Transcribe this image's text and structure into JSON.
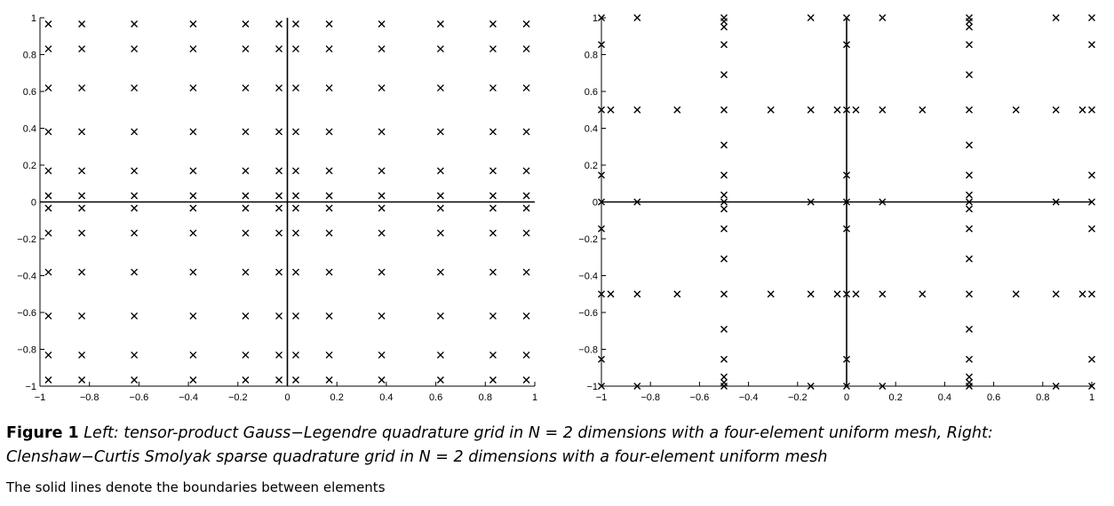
{
  "chart_data": [
    {
      "type": "scatter",
      "title": "",
      "xlabel": "",
      "ylabel": "",
      "xlim": [
        -1,
        1
      ],
      "ylim": [
        -1,
        1
      ],
      "xticks": [
        -1,
        -0.8,
        -0.6,
        -0.4,
        -0.2,
        0,
        0.2,
        0.4,
        0.6,
        0.8,
        1
      ],
      "yticks": [
        -1,
        -0.8,
        -0.6,
        -0.4,
        -0.2,
        0,
        0.2,
        0.4,
        0.6,
        0.8,
        1
      ],
      "xtick_labels": [
        "−1",
        "−0.8",
        "−0.6",
        "−0.4",
        "−0.2",
        "0",
        "0.2",
        "0.4",
        "0.6",
        "0.8",
        "1"
      ],
      "ytick_labels": [
        "−1",
        "−0.8",
        "−0.6",
        "−0.4",
        "−0.2",
        "0",
        "0.2",
        "0.4",
        "0.6",
        "0.8",
        "1"
      ],
      "marker": "x",
      "element_boundaries": {
        "x": [
          0
        ],
        "y": [
          0
        ]
      },
      "grid_coords": [
        -0.966,
        -0.831,
        -0.619,
        -0.381,
        -0.169,
        -0.034,
        0.034,
        0.169,
        0.381,
        0.619,
        0.831,
        0.966
      ]
    },
    {
      "type": "scatter",
      "title": "",
      "xlabel": "",
      "ylabel": "",
      "xlim": [
        -1,
        1
      ],
      "ylim": [
        -1,
        1
      ],
      "xticks": [
        -1,
        -0.8,
        -0.6,
        -0.4,
        -0.2,
        0,
        0.2,
        0.4,
        0.6,
        0.8,
        1
      ],
      "yticks": [
        -1,
        -0.8,
        -0.6,
        -0.4,
        -0.2,
        0,
        0.2,
        0.4,
        0.6,
        0.8,
        1
      ],
      "xtick_labels": [
        "−1",
        "−0.8",
        "−0.6",
        "−0.4",
        "−0.2",
        "0",
        "0.2",
        "0.4",
        "0.6",
        "0.8",
        "1"
      ],
      "ytick_labels": [
        "−1",
        "−0.8",
        "−0.6",
        "−0.4",
        "−0.2",
        "0",
        "0.2",
        "0.4",
        "0.6",
        "0.8",
        "1"
      ],
      "marker": "x",
      "element_boundaries": {
        "x": [
          0
        ],
        "y": [
          0
        ]
      },
      "points": [
        [
          -1,
          1
        ],
        [
          -0.854,
          1
        ],
        [
          -0.5,
          1
        ],
        [
          -0.146,
          1
        ],
        [
          0,
          1
        ],
        [
          0.146,
          1
        ],
        [
          0.5,
          1
        ],
        [
          0.854,
          1
        ],
        [
          1,
          1
        ],
        [
          -1,
          0.854
        ],
        [
          -0.5,
          0.854
        ],
        [
          0,
          0.854
        ],
        [
          0.5,
          0.854
        ],
        [
          1,
          0.854
        ],
        [
          -0.5,
          0.98
        ],
        [
          -0.5,
          0.95
        ],
        [
          0.5,
          0.98
        ],
        [
          0.5,
          0.95
        ],
        [
          -0.5,
          0.691
        ],
        [
          0.5,
          0.691
        ],
        [
          -1,
          0.5
        ],
        [
          -0.962,
          0.5
        ],
        [
          -0.854,
          0.5
        ],
        [
          -0.691,
          0.5
        ],
        [
          -0.5,
          0.5
        ],
        [
          -0.309,
          0.5
        ],
        [
          -0.146,
          0.5
        ],
        [
          -0.038,
          0.5
        ],
        [
          0,
          0.5
        ],
        [
          0.038,
          0.5
        ],
        [
          0.146,
          0.5
        ],
        [
          0.309,
          0.5
        ],
        [
          0.5,
          0.5
        ],
        [
          0.691,
          0.5
        ],
        [
          0.854,
          0.5
        ],
        [
          0.962,
          0.5
        ],
        [
          1,
          0.5
        ],
        [
          -0.5,
          0.309
        ],
        [
          0.5,
          0.309
        ],
        [
          -1,
          0.146
        ],
        [
          -0.5,
          0.146
        ],
        [
          0,
          0.146
        ],
        [
          0.5,
          0.146
        ],
        [
          1,
          0.146
        ],
        [
          -0.5,
          0.038
        ],
        [
          0.5,
          0.038
        ],
        [
          -1,
          0
        ],
        [
          -0.854,
          0
        ],
        [
          -0.5,
          0
        ],
        [
          -0.146,
          0
        ],
        [
          0,
          0
        ],
        [
          0.146,
          0
        ],
        [
          0.5,
          0
        ],
        [
          0.854,
          0
        ],
        [
          1,
          0
        ],
        [
          -0.5,
          -0.038
        ],
        [
          0.5,
          -0.038
        ],
        [
          -1,
          -0.146
        ],
        [
          -0.5,
          -0.146
        ],
        [
          0,
          -0.146
        ],
        [
          0.5,
          -0.146
        ],
        [
          1,
          -0.146
        ],
        [
          -0.5,
          -0.309
        ],
        [
          0.5,
          -0.309
        ],
        [
          -1,
          -0.5
        ],
        [
          -0.962,
          -0.5
        ],
        [
          -0.854,
          -0.5
        ],
        [
          -0.691,
          -0.5
        ],
        [
          -0.5,
          -0.5
        ],
        [
          -0.309,
          -0.5
        ],
        [
          -0.146,
          -0.5
        ],
        [
          -0.038,
          -0.5
        ],
        [
          0,
          -0.5
        ],
        [
          0.038,
          -0.5
        ],
        [
          0.146,
          -0.5
        ],
        [
          0.309,
          -0.5
        ],
        [
          0.5,
          -0.5
        ],
        [
          0.691,
          -0.5
        ],
        [
          0.854,
          -0.5
        ],
        [
          0.962,
          -0.5
        ],
        [
          1,
          -0.5
        ],
        [
          -0.5,
          -0.691
        ],
        [
          0.5,
          -0.691
        ],
        [
          -1,
          -0.854
        ],
        [
          -0.5,
          -0.854
        ],
        [
          0,
          -0.854
        ],
        [
          0.5,
          -0.854
        ],
        [
          1,
          -0.854
        ],
        [
          -0.5,
          -0.95
        ],
        [
          -0.5,
          -0.98
        ],
        [
          0.5,
          -0.95
        ],
        [
          0.5,
          -0.98
        ],
        [
          -1,
          -1
        ],
        [
          -0.854,
          -1
        ],
        [
          -0.5,
          -1
        ],
        [
          -0.146,
          -1
        ],
        [
          0,
          -1
        ],
        [
          0.146,
          -1
        ],
        [
          0.5,
          -1
        ],
        [
          0.854,
          -1
        ],
        [
          1,
          -1
        ]
      ]
    }
  ],
  "caption": {
    "label": "Figure 1",
    "text": "Left: tensor-product Gauss−Legendre quadrature grid in N = 2 dimensions with a four-element uniform mesh, Right: Clenshaw−Curtis Smolyak sparse quadrature grid in N = 2 dimensions with a four-element uniform mesh",
    "note": "The solid lines denote the boundaries between elements"
  }
}
